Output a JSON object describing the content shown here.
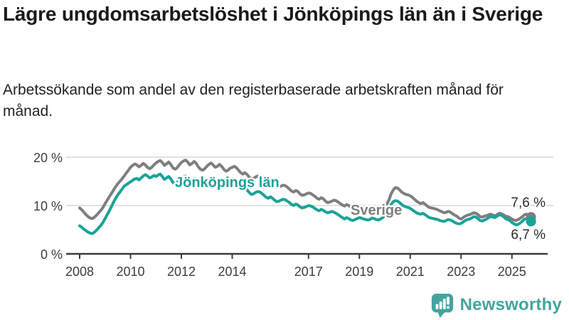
{
  "title": "Lägre ungdomsarbetslöshet i Jönköpings län än i Sverige",
  "subtitle": "Arbetssökande som andel av den registerbaserade arbetskraften månad för månad.",
  "footer": {
    "brand": "Newsworthy",
    "logo_icon": "newsworthy-speech-bubble-bar-chart-icon"
  },
  "colors": {
    "jonkoping_line": "#1AA398",
    "sverige_line": "#7E7E7E",
    "gridline": "#DDDDDD",
    "axis": "#3C3C3C",
    "axis_text": "#3D3D3D",
    "title_text": "#1A1A1A",
    "value_label_text": "#2B2B2B",
    "brand_teal": "#43A49E",
    "background": "#FFFFFF"
  },
  "chart_data": {
    "type": "line",
    "title": "Lägre ungdomsarbetslöshet i Jönköpings län än i Sverige",
    "subtitle": "Arbetssökande som andel av den registerbaserade arbetskraften månad för månad.",
    "xlabel": "",
    "ylabel": "",
    "frequency": "monthly",
    "x_start": "2008-01",
    "x_end": "2025-10",
    "ylim": [
      0,
      22
    ],
    "grid": "horizontal",
    "legend_position": "inline-labels",
    "y_ticks": [
      {
        "value": 0,
        "label": "0 %"
      },
      {
        "value": 10,
        "label": "10 %"
      },
      {
        "value": 20,
        "label": "20 %"
      }
    ],
    "x_ticks": [
      {
        "year": 2008,
        "label": "2008"
      },
      {
        "year": 2010,
        "label": "2010"
      },
      {
        "year": 2012,
        "label": "2012"
      },
      {
        "year": 2014,
        "label": "2014"
      },
      {
        "year": 2017,
        "label": "2017"
      },
      {
        "year": 2019,
        "label": "2019"
      },
      {
        "year": 2021,
        "label": "2021"
      },
      {
        "year": 2023,
        "label": "2023"
      },
      {
        "year": 2025,
        "label": "2025"
      }
    ],
    "series": [
      {
        "name": "Sverige",
        "color": "#7E7E7E",
        "end_label": "7,6 %",
        "end_value": 7.6,
        "values": [
          9.5,
          9.1,
          8.6,
          8.1,
          7.7,
          7.4,
          7.3,
          7.6,
          8.0,
          8.5,
          9.0,
          9.6,
          10.4,
          11.1,
          11.8,
          12.5,
          13.2,
          13.9,
          14.5,
          15.0,
          15.5,
          16.1,
          16.7,
          17.3,
          17.9,
          18.3,
          18.6,
          18.4,
          18.0,
          18.3,
          18.7,
          18.4,
          17.9,
          17.6,
          17.9,
          18.4,
          18.8,
          19.1,
          19.3,
          18.9,
          18.3,
          18.6,
          19.0,
          18.5,
          17.8,
          17.5,
          17.8,
          18.4,
          18.9,
          19.2,
          19.4,
          19.0,
          18.4,
          18.7,
          19.1,
          18.7,
          18.0,
          17.5,
          17.3,
          17.6,
          18.1,
          18.5,
          18.8,
          18.4,
          17.9,
          18.1,
          18.5,
          18.1,
          17.5,
          17.1,
          17.3,
          17.7,
          17.9,
          18.1,
          17.8,
          17.3,
          16.8,
          16.5,
          16.8,
          16.4,
          15.9,
          15.5,
          15.6,
          15.9,
          16.1,
          16.0,
          15.7,
          15.2,
          14.8,
          14.5,
          14.8,
          14.5,
          14.0,
          13.7,
          13.8,
          14.0,
          14.2,
          14.1,
          13.8,
          13.4,
          13.0,
          12.8,
          13.1,
          12.9,
          12.4,
          12.1,
          12.2,
          12.4,
          12.6,
          12.5,
          12.2,
          11.9,
          11.5,
          11.3,
          11.6,
          11.4,
          10.9,
          10.6,
          10.7,
          10.9,
          11.1,
          11.0,
          10.7,
          10.4,
          10.1,
          9.9,
          10.2,
          10.0,
          9.6,
          9.4,
          9.5,
          9.7,
          9.9,
          9.8,
          9.6,
          9.4,
          9.2,
          9.1,
          9.4,
          9.3,
          9.0,
          8.9,
          9.1,
          9.4,
          9.8,
          10.3,
          11.2,
          12.4,
          13.2,
          13.7,
          13.6,
          13.2,
          12.8,
          12.5,
          12.3,
          12.2,
          12.0,
          11.7,
          11.3,
          10.9,
          10.6,
          10.4,
          10.6,
          10.3,
          9.9,
          9.6,
          9.5,
          9.4,
          9.3,
          9.1,
          8.9,
          8.7,
          8.5,
          8.6,
          8.8,
          8.6,
          8.3,
          8.0,
          7.8,
          7.4,
          7.2,
          7.5,
          7.8,
          8.0,
          8.1,
          8.3,
          8.5,
          8.4,
          8.1,
          7.7,
          7.6,
          7.8,
          7.9,
          8.1,
          8.2,
          8.0,
          7.9,
          8.1,
          8.4,
          8.3,
          8.1,
          7.8,
          7.7,
          7.5,
          7.2,
          7.0,
          6.9,
          7.1,
          7.4,
          7.7,
          8.1,
          8.2,
          8.0,
          7.6
        ]
      },
      {
        "name": "Jönköpings län",
        "color": "#1AA398",
        "end_label": "6,7 %",
        "end_value": 6.7,
        "values": [
          5.8,
          5.5,
          5.1,
          4.8,
          4.5,
          4.3,
          4.2,
          4.5,
          4.9,
          5.4,
          5.9,
          6.5,
          7.3,
          8.1,
          8.9,
          9.8,
          10.7,
          11.5,
          12.2,
          12.8,
          13.4,
          14.0,
          14.3,
          14.6,
          14.9,
          15.2,
          15.5,
          15.6,
          15.3,
          15.7,
          16.1,
          16.4,
          16.1,
          15.7,
          15.9,
          16.2,
          16.0,
          16.3,
          16.5,
          16.0,
          15.4,
          15.7,
          16.0,
          15.5,
          14.8,
          14.4,
          14.7,
          15.2,
          15.6,
          15.9,
          16.1,
          15.6,
          14.9,
          15.2,
          15.6,
          15.1,
          14.4,
          13.9,
          14.2,
          14.7,
          15.1,
          15.4,
          15.6,
          15.1,
          14.5,
          14.8,
          15.2,
          14.8,
          14.2,
          13.8,
          14.0,
          14.4,
          14.7,
          14.9,
          14.6,
          14.1,
          13.6,
          13.3,
          13.6,
          13.2,
          12.7,
          12.3,
          12.4,
          12.7,
          12.9,
          12.8,
          12.5,
          12.1,
          11.7,
          11.5,
          11.8,
          11.5,
          11.1,
          10.8,
          10.9,
          11.1,
          11.3,
          11.2,
          10.9,
          10.6,
          10.2,
          10.0,
          10.3,
          10.1,
          9.7,
          9.5,
          9.6,
          9.8,
          10.0,
          9.9,
          9.7,
          9.4,
          9.1,
          8.9,
          9.2,
          9.0,
          8.7,
          8.5,
          8.6,
          8.8,
          8.6,
          8.4,
          8.1,
          7.8,
          7.5,
          7.2,
          7.5,
          7.3,
          7.0,
          6.9,
          7.1,
          7.3,
          7.5,
          7.4,
          7.2,
          7.1,
          7.0,
          7.1,
          7.4,
          7.3,
          7.1,
          7.0,
          7.2,
          7.5,
          7.9,
          8.4,
          9.3,
          10.2,
          10.8,
          11.0,
          10.9,
          10.6,
          10.2,
          9.9,
          9.7,
          9.6,
          9.4,
          9.1,
          8.8,
          8.5,
          8.3,
          8.2,
          8.4,
          8.1,
          7.8,
          7.5,
          7.4,
          7.3,
          7.2,
          7.1,
          6.9,
          6.8,
          6.7,
          6.9,
          7.1,
          7.0,
          6.8,
          6.5,
          6.3,
          6.2,
          6.3,
          6.6,
          6.9,
          7.1,
          7.2,
          7.4,
          7.7,
          7.6,
          7.3,
          6.9,
          6.8,
          7.0,
          7.2,
          7.5,
          7.7,
          7.6,
          7.5,
          7.8,
          8.1,
          8.0,
          7.7,
          7.3,
          7.1,
          6.9,
          6.5,
          6.2,
          6.0,
          6.1,
          6.4,
          6.8,
          7.2,
          7.3,
          7.0,
          6.7
        ]
      }
    ]
  }
}
